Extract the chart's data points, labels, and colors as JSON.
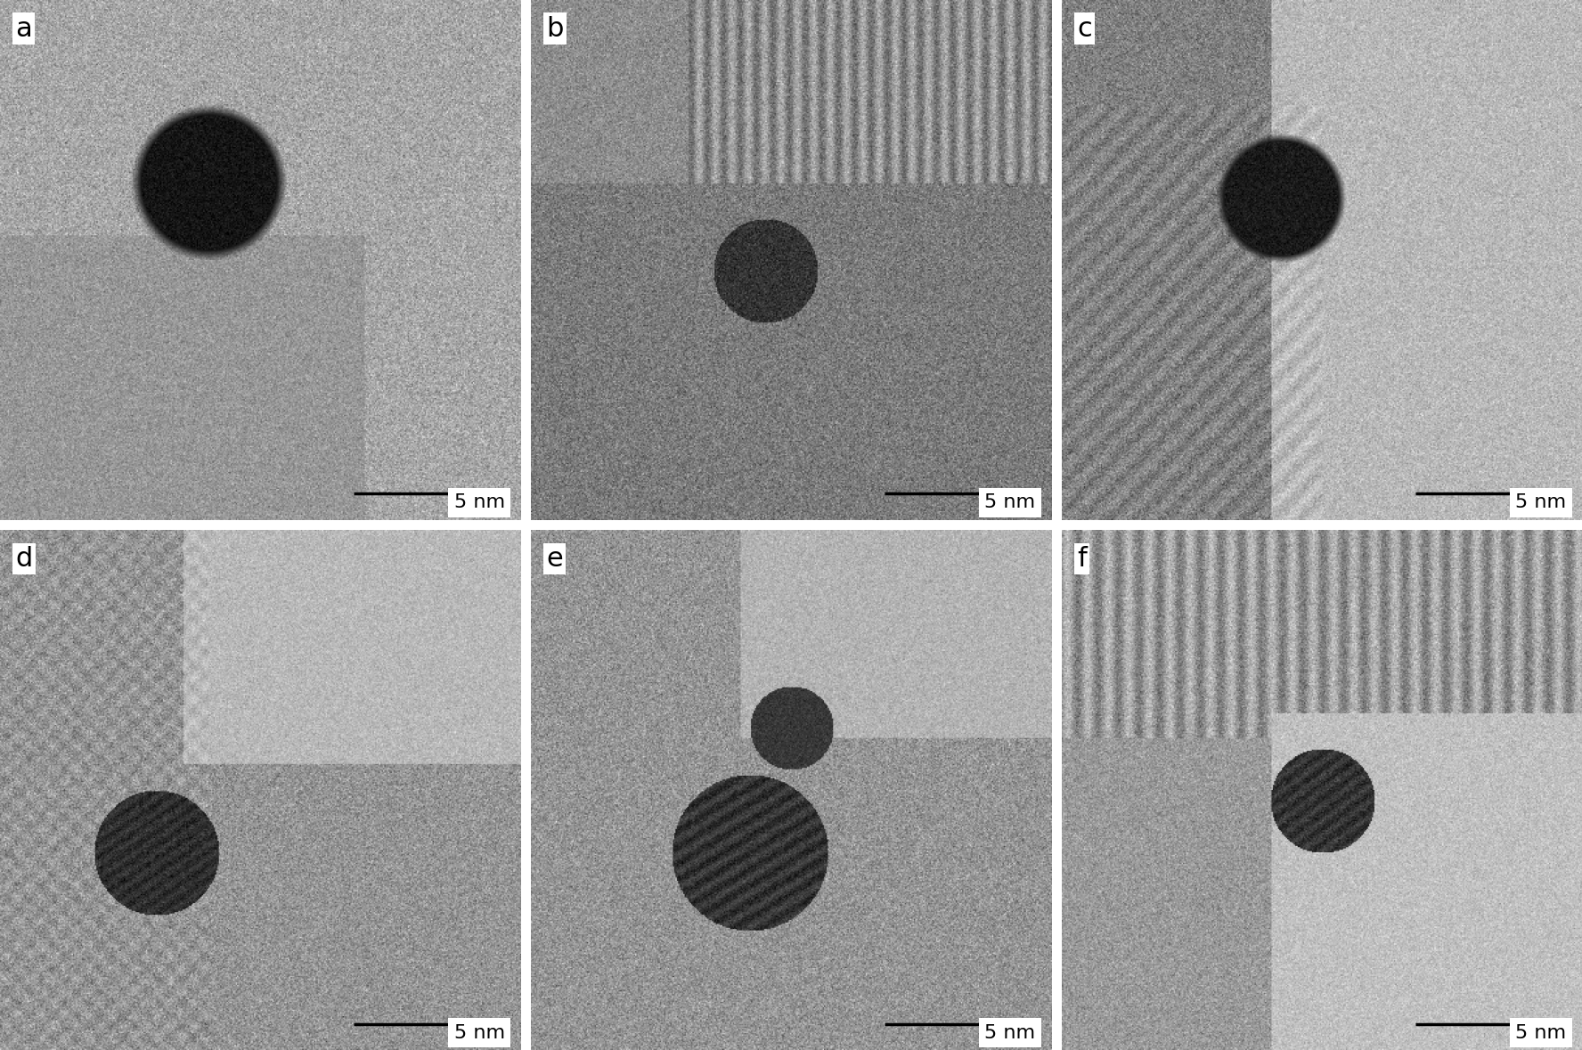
{
  "panels": [
    "a",
    "b",
    "c",
    "d",
    "e",
    "f"
  ],
  "nrows": 2,
  "ncols": 3,
  "label_fontsize": 22,
  "scalebar_text": "5 nm",
  "scalebar_fontsize": 16,
  "bg_color": "#ffffff",
  "label_bg": "#ffffff",
  "scalebar_bg": "#ffffff",
  "panel_bg_colors": [
    "#b0b0b0",
    "#909090",
    "#a0a0a0",
    "#888888",
    "#909090",
    "#b0b0b0"
  ],
  "figsize": [
    17.76,
    11.79
  ],
  "dpi": 100
}
